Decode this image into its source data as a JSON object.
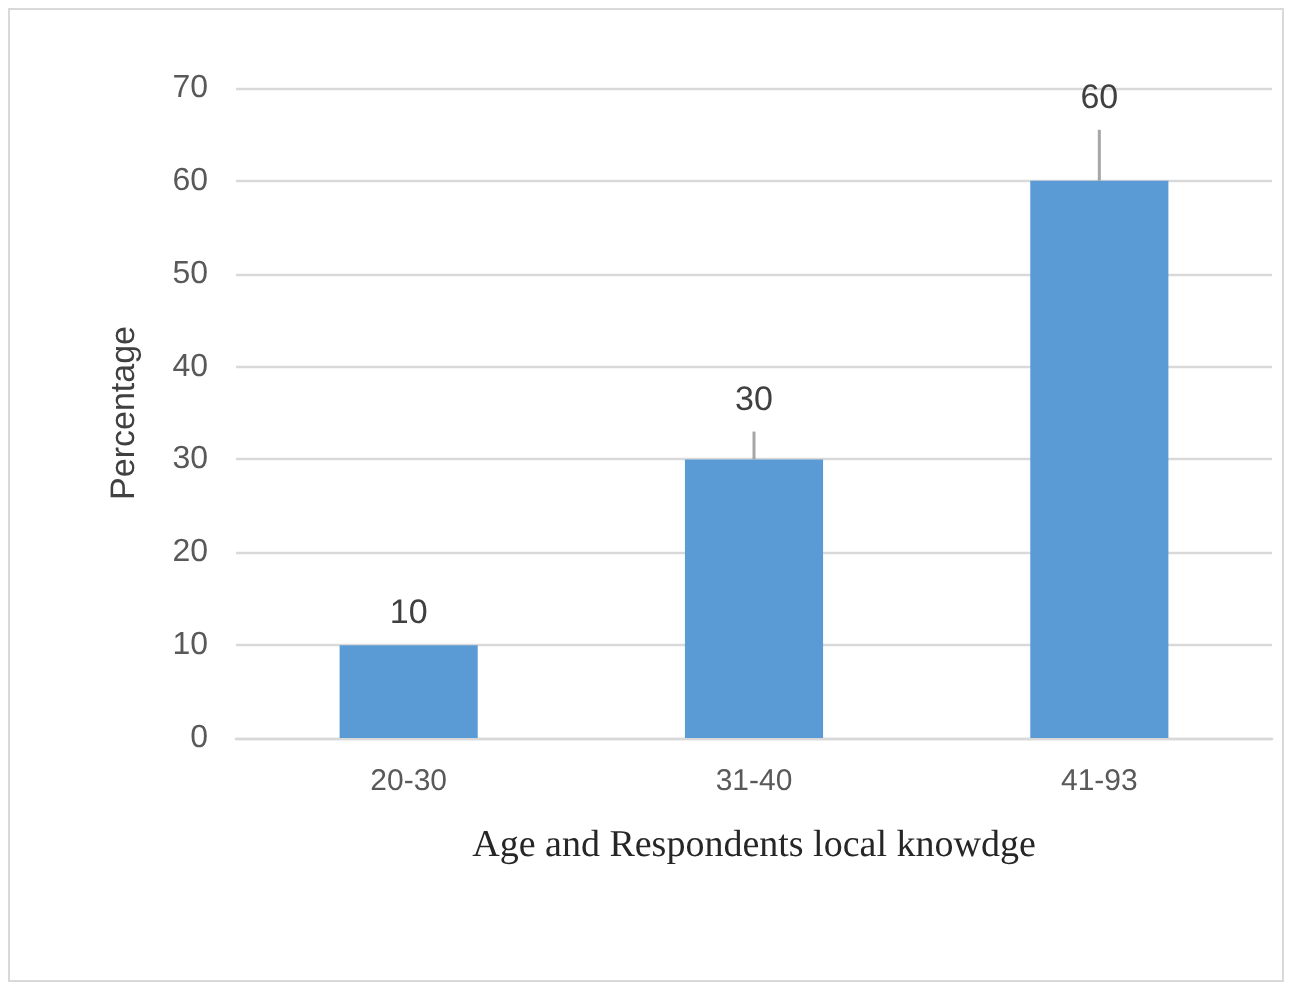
{
  "chart_data": {
    "type": "bar",
    "xlabel": "Age and Respondents local knowdge",
    "ylabel": "Percentage",
    "categories": [
      "20-30",
      "31-40",
      "41-93"
    ],
    "values": [
      10,
      30,
      60
    ],
    "color": "#5b9bd5",
    "errors": [
      null,
      [
        30,
        33
      ],
      [
        60,
        65.5
      ]
    ],
    "ylim": [
      0,
      70
    ],
    "yticks": [
      0,
      10,
      20,
      30,
      40,
      50,
      60,
      70
    ],
    "grid": "y",
    "data_labels": true
  }
}
